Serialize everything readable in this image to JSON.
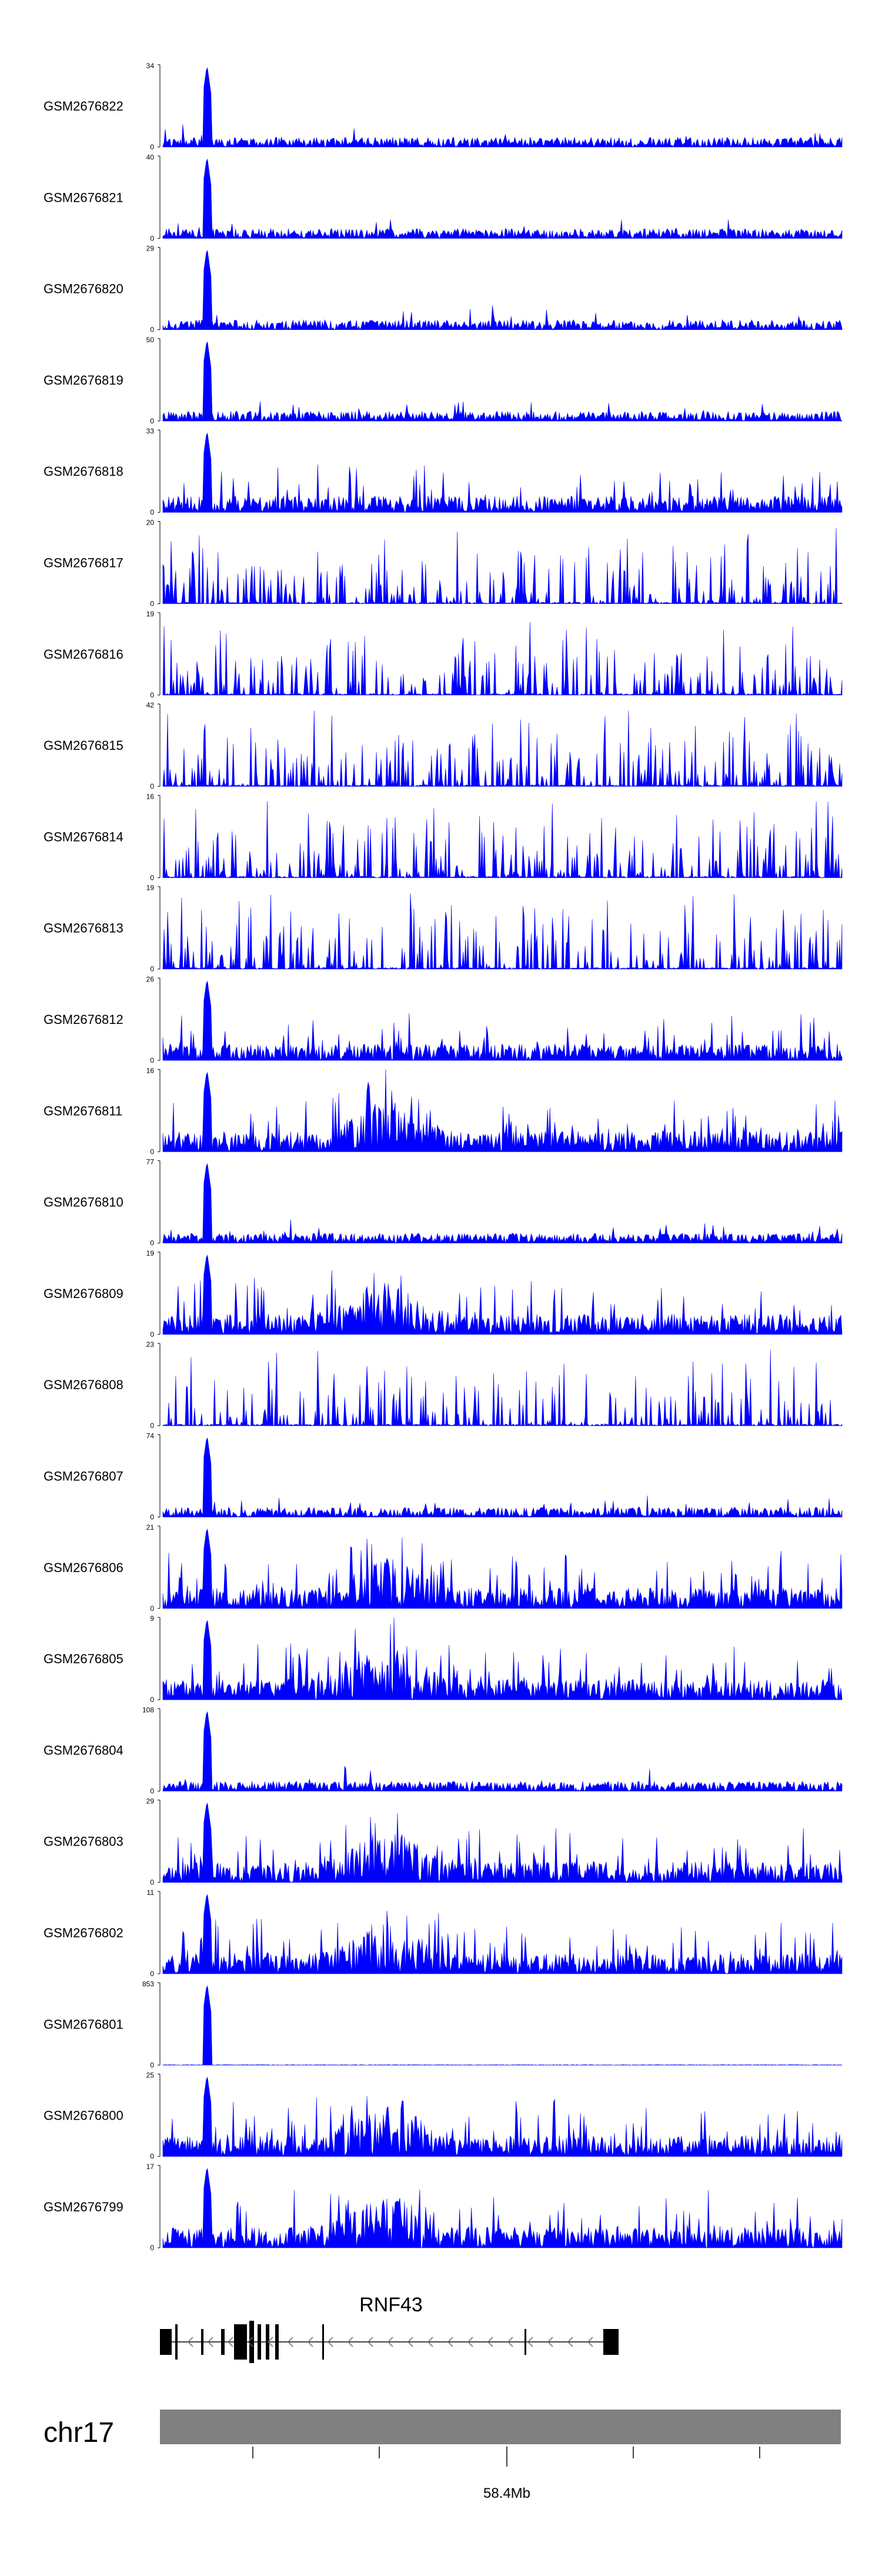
{
  "chart_data": {
    "type": "area",
    "color": "#0000ff",
    "tracks": [
      {
        "name": "GSM2676822",
        "ymax": "34",
        "ymin": "0",
        "peak": 34,
        "profile": "peak-low",
        "seed": 22
      },
      {
        "name": "GSM2676821",
        "ymax": "40",
        "ymin": "0",
        "peak": 40,
        "profile": "peak-low",
        "seed": 21
      },
      {
        "name": "GSM2676820",
        "ymax": "29",
        "ymin": "0",
        "peak": 29,
        "profile": "peak-low",
        "seed": 20
      },
      {
        "name": "GSM2676819",
        "ymax": "50",
        "ymin": "0",
        "peak": 50,
        "profile": "peak-low",
        "seed": 19
      },
      {
        "name": "GSM2676818",
        "ymax": "33",
        "ymin": "0",
        "peak": 33,
        "profile": "peak-mid",
        "seed": 18
      },
      {
        "name": "GSM2676817",
        "ymax": "20",
        "ymin": "0",
        "peak": 20,
        "profile": "sparse",
        "seed": 17
      },
      {
        "name": "GSM2676816",
        "ymax": "19",
        "ymin": "0",
        "peak": 19,
        "profile": "sparse",
        "seed": 16
      },
      {
        "name": "GSM2676815",
        "ymax": "42",
        "ymin": "0",
        "peak": 42,
        "profile": "sparse",
        "seed": 15
      },
      {
        "name": "GSM2676814",
        "ymax": "16",
        "ymin": "0",
        "peak": 16,
        "profile": "sparse",
        "seed": 14
      },
      {
        "name": "GSM2676813",
        "ymax": "19",
        "ymin": "0",
        "peak": 19,
        "profile": "sparse",
        "seed": 13
      },
      {
        "name": "GSM2676812",
        "ymax": "26",
        "ymin": "0",
        "peak": 26,
        "profile": "peak-mid",
        "seed": 12
      },
      {
        "name": "GSM2676811",
        "ymax": "16",
        "ymin": "0",
        "peak": 16,
        "profile": "dense",
        "seed": 11
      },
      {
        "name": "GSM2676810",
        "ymax": "77",
        "ymin": "0",
        "peak": 77,
        "profile": "peak-low",
        "seed": 10
      },
      {
        "name": "GSM2676809",
        "ymax": "19",
        "ymin": "0",
        "peak": 19,
        "profile": "dense",
        "seed": 9
      },
      {
        "name": "GSM2676808",
        "ymax": "23",
        "ymin": "0",
        "peak": 23,
        "profile": "sparse",
        "seed": 8
      },
      {
        "name": "GSM2676807",
        "ymax": "74",
        "ymin": "0",
        "peak": 74,
        "profile": "peak-low",
        "seed": 7
      },
      {
        "name": "GSM2676806",
        "ymax": "21",
        "ymin": "0",
        "peak": 21,
        "profile": "dense",
        "seed": 6
      },
      {
        "name": "GSM2676805",
        "ymax": "9",
        "ymin": "0",
        "peak": 9,
        "profile": "dense",
        "seed": 5
      },
      {
        "name": "GSM2676804",
        "ymax": "108",
        "ymin": "0",
        "peak": 108,
        "profile": "peak-low",
        "seed": 4
      },
      {
        "name": "GSM2676803",
        "ymax": "29",
        "ymin": "0",
        "peak": 29,
        "profile": "dense",
        "seed": 3
      },
      {
        "name": "GSM2676802",
        "ymax": "11",
        "ymin": "0",
        "peak": 11,
        "profile": "dense",
        "seed": 2
      },
      {
        "name": "GSM2676801",
        "ymax": "853",
        "ymin": "0",
        "peak": 853,
        "profile": "spike-only",
        "seed": 1
      },
      {
        "name": "GSM2676800",
        "ymax": "25",
        "ymin": "0",
        "peak": 25,
        "profile": "dense",
        "seed": 100
      },
      {
        "name": "GSM2676799",
        "ymax": "17",
        "ymin": "0",
        "peak": 17,
        "profile": "dense",
        "seed": 99
      }
    ],
    "gene": {
      "name": "RNF43",
      "strand": "-"
    },
    "chromosome": {
      "name": "chr17",
      "tick_label": "58.4Mb"
    }
  }
}
